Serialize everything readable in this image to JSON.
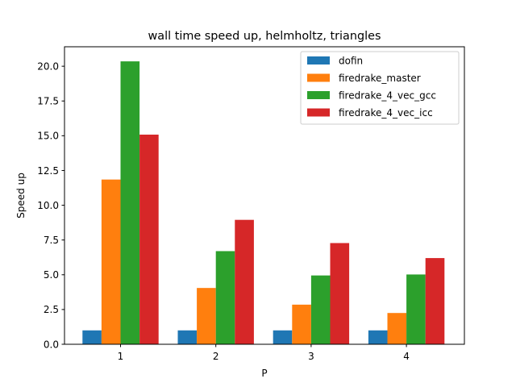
{
  "chart_data": {
    "type": "bar",
    "title": "wall time speed up, helmholtz, triangles",
    "xlabel": "P",
    "ylabel": "Speed up",
    "categories": [
      "1",
      "2",
      "3",
      "4"
    ],
    "series": [
      {
        "name": "dofin",
        "color": "#1f77b4",
        "values": [
          1.0,
          1.0,
          1.0,
          1.0
        ]
      },
      {
        "name": "firedrake_master",
        "color": "#ff7f0e",
        "values": [
          11.85,
          4.05,
          2.85,
          2.25
        ]
      },
      {
        "name": "firedrake_4_vec_gcc",
        "color": "#2ca02c",
        "values": [
          20.35,
          6.7,
          4.95,
          5.02
        ]
      },
      {
        "name": "firedrake_4_vec_icc",
        "color": "#d62728",
        "values": [
          15.08,
          8.95,
          7.28,
          6.2
        ]
      }
    ],
    "ylim": [
      0,
      21.4
    ],
    "yticks": [
      0.0,
      2.5,
      5.0,
      7.5,
      10.0,
      12.5,
      15.0,
      17.5,
      20.0
    ],
    "ytick_labels": [
      "0.0",
      "2.5",
      "5.0",
      "7.5",
      "10.0",
      "12.5",
      "15.0",
      "17.5",
      "20.0"
    ],
    "grid": false,
    "legend_position": "top-right"
  }
}
